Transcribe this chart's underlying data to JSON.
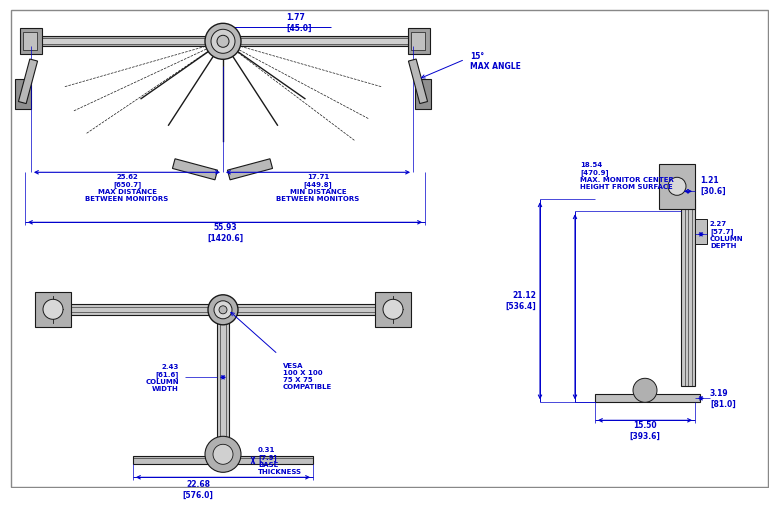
{
  "bg_color": "#ffffff",
  "line_color": "#1a1a1a",
  "dim_color": "#0000cc",
  "dim_color2": "#0055cc",
  "annotations": {
    "top_width": "1.77\n[45.0]",
    "max_angle": "15°\nMAX ANGLE",
    "max_dist": "25.62\n[650.7]\nMAX DISTANCE\nBETWEEN MONITORS",
    "min_dist": "17.71\n[449.8]\nMIN DISTANCE\nBETWEEN MONITORS",
    "total_width": "55.93\n[1420.6]",
    "col_width": "2.43\n[61.6]\nCOLUMN\nWIDTH",
    "vesa": "VESA\n100 X 100\n75 X 75\nCOMPATIBLE",
    "base_thick": "0.31\n[7.9]\nBASE\nTHICKNESS",
    "base_len": "22.68\n[576.0]",
    "height_total": "21.12\n[536.4]",
    "height_monitor": "18.54\n[470.9]\nMAX. MONITOR CENTER\nHEIGHT FROM SURFACE",
    "col_offset": "1.21\n[30.6]",
    "col_depth": "2.27\n[57.7]\nCOLUMN\nDEPTH",
    "base_depth": "3.19\n[81.0]",
    "base_len2": "15.50\n[393.6]"
  }
}
